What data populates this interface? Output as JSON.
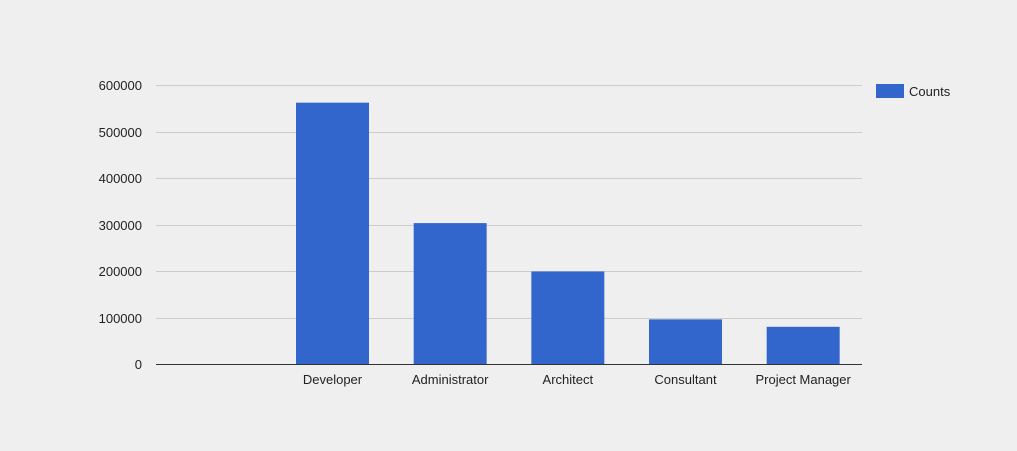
{
  "chart_data": {
    "type": "bar",
    "categories": [
      "",
      "Developer",
      "Administrator",
      "Architect",
      "Consultant",
      "Project Manager"
    ],
    "series": [
      {
        "name": "Counts",
        "values": [
          0,
          562000,
          303000,
          199000,
          96000,
          80000
        ]
      }
    ],
    "ylim": [
      0,
      600000
    ],
    "yticks": [
      0,
      100000,
      200000,
      300000,
      400000,
      500000,
      600000
    ],
    "ytick_labels": [
      "0",
      "100000",
      "200000",
      "300000",
      "400000",
      "500000",
      "600000"
    ],
    "grid": true,
    "legend_position": "right",
    "title": "",
    "xlabel": "",
    "ylabel": ""
  },
  "colors": {
    "background": "#efefef",
    "bar": "#3366cc",
    "gridline": "#cccccc",
    "baseline": "#333333",
    "text": "#222222"
  }
}
